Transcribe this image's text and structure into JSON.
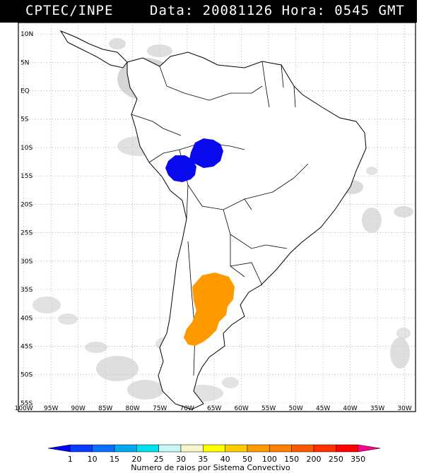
{
  "header": {
    "source": "CPTEC/INPE",
    "date_label": "Data:",
    "date": "20081126",
    "time_label": "Hora:",
    "time": "0545",
    "timezone": "GMT"
  },
  "map": {
    "lat_labels": [
      "10N",
      "5N",
      "EQ",
      "5S",
      "10S",
      "15S",
      "20S",
      "25S",
      "30S",
      "35S",
      "40S",
      "45S",
      "50S",
      "55S"
    ],
    "lon_labels": [
      "100W",
      "95W",
      "90W",
      "85W",
      "80W",
      "75W",
      "70W",
      "65W",
      "60W",
      "55W",
      "50W",
      "45W",
      "40W",
      "35W",
      "30W"
    ],
    "lat_values": [
      10,
      5,
      0,
      -5,
      -10,
      -15,
      -20,
      -25,
      -30,
      -35,
      -40,
      -45,
      -50,
      -55
    ],
    "lon_values": [
      -100,
      -95,
      -90,
      -85,
      -80,
      -75,
      -70,
      -65,
      -60,
      -55,
      -50,
      -45,
      -40,
      -35,
      -30
    ],
    "lon_range": [
      -101,
      -28
    ],
    "lat_range": [
      12,
      -56.5
    ],
    "grid": "dotted",
    "cloud_color": "#c8c8c8",
    "systems": [
      {
        "name": "amazon-western-cluster",
        "color": "#0a0aee",
        "category": "1-10",
        "center_lon": -70.3,
        "center_lat": -12.4
      },
      {
        "name": "amazon-eastern-cluster",
        "color": "#0a0aee",
        "category": "1-10",
        "center_lon": -65.5,
        "center_lat": -10.6
      },
      {
        "name": "argentina-system",
        "color": "#ff9900",
        "category": "100-150",
        "center_lon": -63.0,
        "center_lat": -37.0
      }
    ]
  },
  "colorbar": {
    "title": "Numero de raios por Sistema Convectivo",
    "labels": [
      "1",
      "10",
      "15",
      "20",
      "25",
      "30",
      "35",
      "40",
      "50",
      "100",
      "150",
      "200",
      "250",
      "350"
    ],
    "colors": [
      "#0000ff",
      "#0a3cff",
      "#0a6eff",
      "#00aaee",
      "#00e0ee",
      "#c8f5f5",
      "#f5f5c8",
      "#ffff00",
      "#ffcc00",
      "#ff9900",
      "#ff8000",
      "#ff5a00",
      "#ff3000",
      "#ff0000",
      "#ff0090"
    ]
  }
}
